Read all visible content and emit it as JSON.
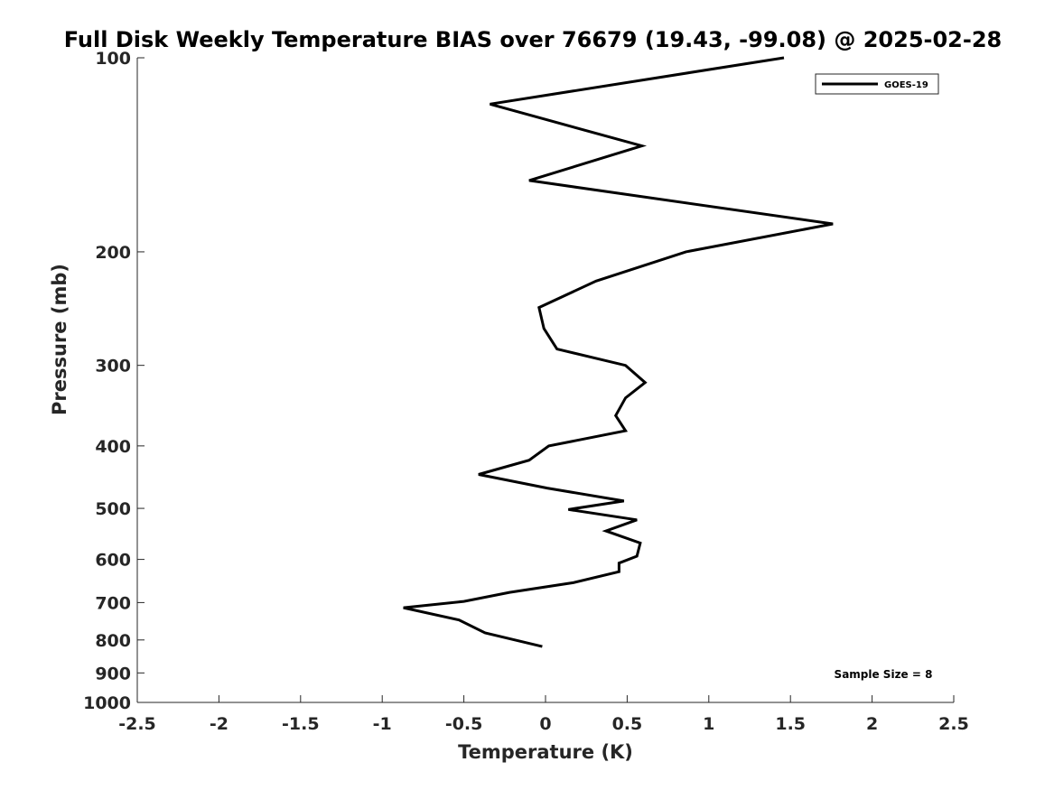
{
  "chart_data": {
    "type": "line",
    "title": "Full Disk Weekly Temperature BIAS over 76679 (19.43, -99.08) @ 2025-02-28",
    "xlabel": "Temperature (K)",
    "ylabel": "Pressure (mb)",
    "xlim": [
      -2.5,
      2.5
    ],
    "ylim": [
      1000,
      100
    ],
    "y_scale": "log",
    "x_ticks": [
      "-2.5",
      "-2",
      "-1.5",
      "-1",
      "-0.5",
      "0",
      "0.5",
      "1",
      "1.5",
      "2",
      "2.5"
    ],
    "x_tick_values": [
      -2.5,
      -2,
      -1.5,
      -1,
      -0.5,
      0,
      0.5,
      1,
      1.5,
      2,
      2.5
    ],
    "y_ticks": [
      "100",
      "200",
      "300",
      "400",
      "500",
      "600",
      "700",
      "800",
      "900",
      "1000"
    ],
    "y_tick_values": [
      100,
      200,
      300,
      400,
      500,
      600,
      700,
      800,
      900,
      1000
    ],
    "grid": false,
    "legend_position": "top-right",
    "series": [
      {
        "name": "GOES-19",
        "color": "#000000",
        "points": [
          {
            "x": 1.46,
            "y": 100
          },
          {
            "x": -0.34,
            "y": 118
          },
          {
            "x": 0.59,
            "y": 137
          },
          {
            "x": -0.1,
            "y": 155
          },
          {
            "x": 1.76,
            "y": 181
          },
          {
            "x": 0.86,
            "y": 200
          },
          {
            "x": 0.31,
            "y": 222
          },
          {
            "x": -0.04,
            "y": 244
          },
          {
            "x": -0.01,
            "y": 263
          },
          {
            "x": 0.07,
            "y": 283
          },
          {
            "x": 0.49,
            "y": 300
          },
          {
            "x": 0.61,
            "y": 319
          },
          {
            "x": 0.49,
            "y": 337
          },
          {
            "x": 0.43,
            "y": 359
          },
          {
            "x": 0.49,
            "y": 379
          },
          {
            "x": 0.02,
            "y": 400
          },
          {
            "x": -0.1,
            "y": 421
          },
          {
            "x": -0.41,
            "y": 443
          },
          {
            "x": 0.01,
            "y": 465
          },
          {
            "x": 0.48,
            "y": 487
          },
          {
            "x": 0.14,
            "y": 502
          },
          {
            "x": 0.56,
            "y": 521
          },
          {
            "x": 0.37,
            "y": 542
          },
          {
            "x": 0.58,
            "y": 566
          },
          {
            "x": 0.56,
            "y": 593
          },
          {
            "x": 0.45,
            "y": 608
          },
          {
            "x": 0.45,
            "y": 627
          },
          {
            "x": 0.17,
            "y": 652
          },
          {
            "x": -0.22,
            "y": 675
          },
          {
            "x": -0.5,
            "y": 697
          },
          {
            "x": -0.87,
            "y": 713
          },
          {
            "x": -0.53,
            "y": 745
          },
          {
            "x": -0.37,
            "y": 780
          },
          {
            "x": -0.02,
            "y": 819
          }
        ]
      }
    ],
    "annotation": "Sample Size = 8"
  }
}
